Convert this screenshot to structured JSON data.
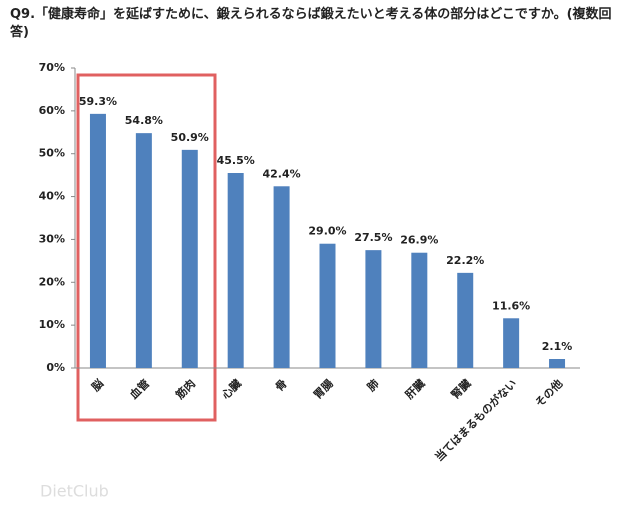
{
  "chart_data": {
    "type": "bar",
    "title": "Q9.「健康寿命」を延ばすために、鍛えられるならば鍛えたいと考える体の部分はどこですか。(複数回答)",
    "categories": [
      "脳",
      "血管",
      "筋肉",
      "心臓",
      "骨",
      "胃腸",
      "肺",
      "肝臓",
      "腎臓",
      "当てはまるものがない",
      "その他"
    ],
    "values": [
      59.3,
      54.8,
      50.9,
      45.5,
      42.4,
      29.0,
      27.5,
      26.9,
      22.2,
      11.6,
      2.1
    ],
    "value_labels": [
      "59.3%",
      "54.8%",
      "50.9%",
      "45.5%",
      "42.4%",
      "29.0%",
      "27.5%",
      "26.9%",
      "22.2%",
      "11.6%",
      "2.1%"
    ],
    "color": "#4f81bd",
    "ylim": [
      0,
      70
    ],
    "yticks": [
      {
        "value": 0,
        "label": "0%"
      },
      {
        "value": 10,
        "label": "10%"
      },
      {
        "value": 20,
        "label": "20%"
      },
      {
        "value": 30,
        "label": "30%"
      },
      {
        "value": 40,
        "label": "40%"
      },
      {
        "value": 50,
        "label": "50%"
      },
      {
        "value": 60,
        "label": "60%"
      },
      {
        "value": 70,
        "label": "70%"
      }
    ],
    "grid": false,
    "watermark": "DietClub"
  }
}
